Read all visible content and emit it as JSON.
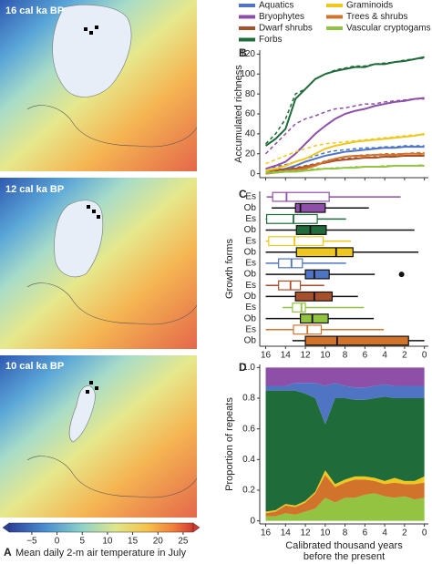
{
  "panel_a": {
    "maps": [
      "16 cal ka BP",
      "12 cal ka BP",
      "10 cal ka BP"
    ],
    "colorbar": {
      "lim": [
        -9.5,
        27
      ],
      "ticks": [
        {
          "value": -5,
          "label": "−5"
        },
        0,
        5,
        10,
        15,
        20,
        25
      ]
    },
    "letter": "A",
    "caption": "Mean daily 2-m air temperature in July"
  },
  "chart_data": [
    {
      "type": "line",
      "letter": "B",
      "ylabel": "Accumulated richness",
      "x": [
        16,
        15,
        14,
        13,
        12,
        11,
        10,
        9,
        8,
        7,
        6,
        5,
        4,
        3,
        2,
        1,
        0
      ],
      "xlim": [
        16.6,
        -0.4
      ],
      "xticks": [
        16,
        14,
        12,
        10,
        8,
        6,
        4,
        2,
        0
      ],
      "ylim": [
        -4,
        124
      ],
      "yticks": [
        0,
        20,
        40,
        60,
        80,
        100,
        120
      ],
      "series": [
        {
          "name": "Aquatics",
          "color": "#4f74c4",
          "values": [
            2,
            3,
            5,
            8,
            12,
            15,
            18,
            20,
            22,
            23,
            24,
            25,
            26,
            26,
            27,
            27,
            27
          ],
          "dashed_values": [
            5,
            7,
            9,
            12,
            15,
            18,
            21,
            23,
            24,
            25,
            26,
            26,
            27,
            27,
            28,
            28,
            28
          ]
        },
        {
          "name": "Bryophytes",
          "color": "#8e4fa8",
          "values": [
            5,
            8,
            12,
            20,
            30,
            40,
            48,
            55,
            60,
            63,
            65,
            68,
            70,
            72,
            73,
            75,
            76
          ],
          "dashed_values": [
            20,
            30,
            40,
            50,
            55,
            58,
            62,
            65,
            66,
            68,
            70,
            70,
            72,
            73,
            74,
            75,
            75
          ]
        },
        {
          "name": "Dwarf shrubs",
          "color": "#a8502c",
          "values": [
            2,
            3,
            4,
            5,
            7,
            9,
            11,
            13,
            14,
            15,
            16,
            16,
            17,
            17,
            18,
            18,
            18
          ],
          "dashed_values": [
            3,
            4,
            5,
            6,
            8,
            10,
            12,
            14,
            15,
            16,
            16,
            17,
            17,
            18,
            18,
            18,
            19
          ]
        },
        {
          "name": "Forbs",
          "color": "#1f6b39",
          "values": [
            28,
            35,
            45,
            75,
            85,
            95,
            100,
            103,
            105,
            107,
            107,
            110,
            110,
            112,
            113,
            115,
            117
          ],
          "dashed_values": [
            30,
            40,
            55,
            80,
            85,
            95,
            100,
            104,
            106,
            108,
            108,
            110,
            111,
            112,
            114,
            115,
            116
          ]
        },
        {
          "name": "Graminoids",
          "color": "#efc81e",
          "values": [
            3,
            5,
            8,
            12,
            15,
            20,
            25,
            28,
            30,
            32,
            33,
            34,
            35,
            36,
            37,
            38,
            40
          ],
          "dashed_values": [
            10,
            14,
            18,
            22,
            25,
            28,
            30,
            31,
            32,
            33,
            34,
            35,
            36,
            37,
            38,
            39,
            39
          ]
        },
        {
          "name": "Trees & shrubs",
          "color": "#d2732c",
          "values": [
            0,
            1,
            2,
            3,
            5,
            8,
            12,
            15,
            17,
            18,
            18,
            19,
            19,
            19,
            20,
            20,
            20
          ],
          "dashed_values": [
            1,
            2,
            3,
            4,
            6,
            9,
            13,
            15,
            17,
            18,
            19,
            19,
            20,
            20,
            20,
            21,
            21
          ]
        },
        {
          "name": "Vascular cryptogams",
          "color": "#92c442",
          "values": [
            1,
            1,
            2,
            2,
            3,
            4,
            5,
            5,
            6,
            6,
            7,
            7,
            7,
            8,
            8,
            8,
            8
          ],
          "dashed_values": [
            2,
            2,
            3,
            3,
            4,
            5,
            5,
            6,
            6,
            7,
            7,
            7,
            8,
            8,
            8,
            8,
            9
          ]
        }
      ]
    },
    {
      "type": "box",
      "letter": "C",
      "ylabel": "Growth forms",
      "categories": [
        "Es",
        "Ob",
        "Es",
        "Ob",
        "Es",
        "Ob",
        "Es",
        "Ob",
        "Es",
        "Ob",
        "Es",
        "Ob",
        "Es",
        "Ob"
      ],
      "xlim": [
        16.6,
        -0.4
      ],
      "xticks": [
        16,
        14,
        12,
        10,
        8,
        6,
        4,
        2,
        0
      ],
      "boxes": [
        {
          "group": 1,
          "min": 2.4,
          "q1": 9.6,
          "median": 13.9,
          "q3": 15.3,
          "max": 15.9
        },
        {
          "group": 1,
          "min": 5.6,
          "q1": 10,
          "median": 12.5,
          "q3": 13,
          "max": 15.4
        },
        {
          "group": 3,
          "min": 7.9,
          "q1": 10.8,
          "median": 13.2,
          "q3": 15.9,
          "max": 16
        },
        {
          "group": 3,
          "min": 1,
          "q1": 9.9,
          "median": 11.5,
          "q3": 12.9,
          "max": 16
        },
        {
          "group": 4,
          "min": 7.4,
          "q1": 10.2,
          "median": 13.1,
          "q3": 15.7,
          "max": 16
        },
        {
          "group": 4,
          "min": 0.6,
          "q1": 7.2,
          "median": 8.9,
          "q3": 12.9,
          "max": 16
        },
        {
          "group": 0,
          "min": 7.9,
          "q1": 12.3,
          "median": 13.4,
          "q3": 14.7,
          "max": 16
        },
        {
          "group": 0,
          "min": 5,
          "q1": 9.6,
          "median": 11.1,
          "q3": 12,
          "max": 16,
          "outliers": [
            2.3
          ]
        },
        {
          "group": 2,
          "min": 10.1,
          "q1": 12.5,
          "median": 13.5,
          "q3": 14.7,
          "max": 16
        },
        {
          "group": 2,
          "min": 6.7,
          "q1": 9.3,
          "median": 11.1,
          "q3": 13,
          "max": 16
        },
        {
          "group": 6,
          "min": 6.1,
          "q1": 12,
          "median": 12.4,
          "q3": 13.3,
          "max": 14.3
        },
        {
          "group": 6,
          "min": 5.1,
          "q1": 9.7,
          "median": 11.3,
          "q3": 12.5,
          "max": 16
        },
        {
          "group": 5,
          "min": 4.1,
          "q1": 10.4,
          "median": 11.8,
          "q3": 13.2,
          "max": 16
        },
        {
          "group": 5,
          "min": 0,
          "q1": 1.6,
          "median": 8.8,
          "q3": 12,
          "max": 13.3
        }
      ]
    },
    {
      "type": "stacked-area",
      "letter": "D",
      "ylabel": "Proportion of repeats",
      "xlabel": [
        "Calibrated thousand years",
        "before the present"
      ],
      "x": [
        16,
        15,
        14,
        13,
        12,
        11,
        10,
        9,
        8,
        7,
        6,
        5,
        4,
        3,
        2,
        1,
        0
      ],
      "xlim": [
        16.6,
        -0.4
      ],
      "xticks": [
        16,
        14,
        12,
        10,
        8,
        6,
        4,
        2,
        0
      ],
      "ylim": [
        -0.02,
        1.02
      ],
      "yticks": [
        0,
        0.2,
        0.4,
        0.6,
        0.8,
        {
          "value": 1,
          "label": "1.0"
        }
      ],
      "series": [
        {
          "group": 6,
          "values": [
            0.03,
            0.03,
            0.05,
            0.04,
            0.06,
            0.08,
            0.15,
            0.12,
            0.15,
            0.15,
            0.17,
            0.18,
            0.16,
            0.15,
            0.16,
            0.14,
            0.15
          ]
        },
        {
          "group": 5,
          "values": [
            0.02,
            0.03,
            0.05,
            0.05,
            0.06,
            0.1,
            0.15,
            0.1,
            0.1,
            0.12,
            0.1,
            0.08,
            0.08,
            0.1,
            0.08,
            0.1,
            0.1
          ]
        },
        {
          "group": 4,
          "values": [
            0.01,
            0.01,
            0.01,
            0.01,
            0.01,
            0.01,
            0.03,
            0.02,
            0.02,
            0.02,
            0.02,
            0.02,
            0.02,
            0.03,
            0.02,
            0.02,
            0.04
          ]
        },
        {
          "group": 3,
          "values": [
            0.79,
            0.78,
            0.74,
            0.75,
            0.7,
            0.61,
            0.3,
            0.56,
            0.53,
            0.5,
            0.5,
            0.52,
            0.55,
            0.52,
            0.54,
            0.54,
            0.51
          ]
        },
        {
          "group": 0,
          "values": [
            0.03,
            0.03,
            0.03,
            0.05,
            0.07,
            0.1,
            0.25,
            0.1,
            0.08,
            0.08,
            0.08,
            0.08,
            0.08,
            0.08,
            0.08,
            0.08,
            0.08
          ]
        },
        {
          "group": 1,
          "values": [
            0.12,
            0.12,
            0.12,
            0.1,
            0.1,
            0.1,
            0.12,
            0.1,
            0.12,
            0.13,
            0.13,
            0.12,
            0.11,
            0.12,
            0.12,
            0.12,
            0.12
          ]
        }
      ]
    }
  ]
}
